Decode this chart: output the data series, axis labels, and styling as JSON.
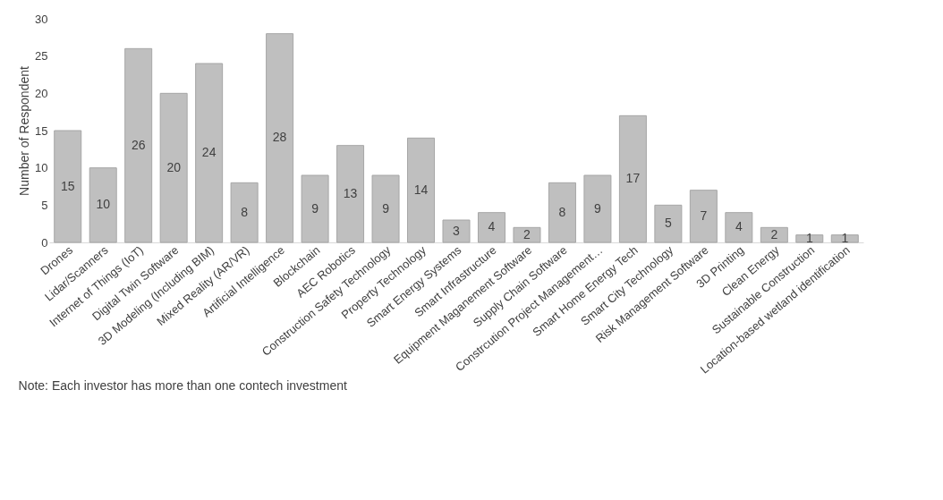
{
  "chart_data": {
    "type": "bar",
    "ylabel": "Number of Respondent",
    "categories": [
      "Drones",
      "Lidar/Scanners",
      "Internet of Things (IoT)",
      "Digital Twin Software",
      "3D Modeling (Including BIM)",
      "Mixed Reality (AR/VR)",
      "Artificial Intelligence",
      "Blockchain",
      "AEC Robotics",
      "Construction Safety Technology",
      "Property Technology",
      "Smart Energy Systems",
      "Smart Infrastructure",
      "Equipment Maganement Software",
      "Supply Chain Software",
      "Constrcution Project Management…",
      "Smart Home Energy Tech",
      "Smart City Technology",
      "Risk Management Software",
      "3D Printing",
      "Clean Energy",
      "Sustainable Construction",
      "Location-based wetland identification"
    ],
    "values": [
      15,
      10,
      26,
      20,
      24,
      8,
      28,
      9,
      13,
      9,
      14,
      3,
      4,
      2,
      8,
      9,
      17,
      5,
      7,
      4,
      2,
      1,
      1
    ],
    "color": "#bfbfbf",
    "ylim": [
      0,
      30
    ],
    "yticks": [
      0,
      5,
      10,
      15,
      20,
      25,
      30
    ],
    "grid": false,
    "data_labels": true,
    "annotations": [
      "Note: Each investor has more than one contech investment"
    ]
  }
}
